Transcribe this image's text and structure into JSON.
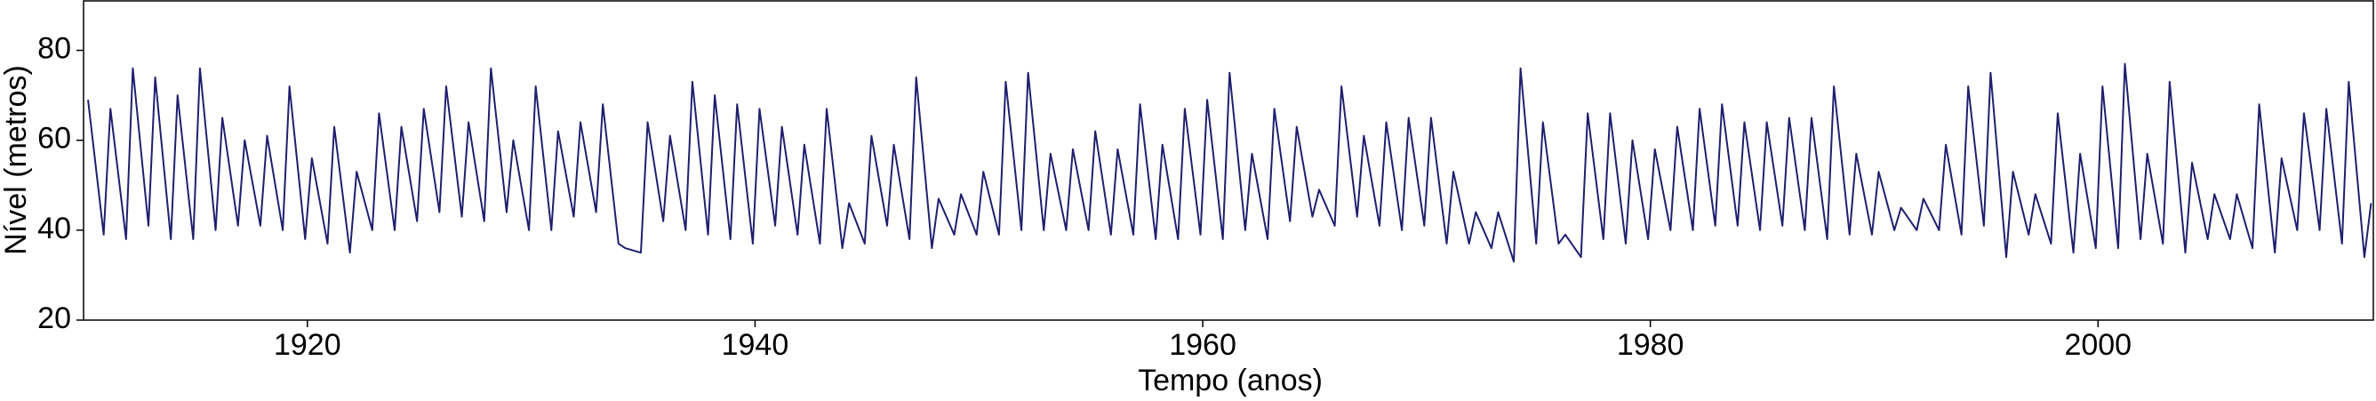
{
  "chart_data": {
    "type": "line",
    "x_label": "Tempo (anos)",
    "y_label": "Nível (metros)",
    "color": "#1f1f6e",
    "grid": false,
    "xlim": [
      1910,
      2012.3
    ],
    "ylim": [
      20,
      91
    ],
    "xticks": [
      1920,
      1940,
      1960,
      1980,
      2000
    ],
    "yticks": [
      20,
      40,
      60,
      80
    ],
    "x": [
      1910.2,
      1910.9,
      1911.2,
      1911.9,
      1912.2,
      1912.9,
      1913.2,
      1913.9,
      1914.2,
      1914.9,
      1915.2,
      1915.9,
      1916.2,
      1916.9,
      1917.2,
      1917.9,
      1918.2,
      1918.9,
      1919.2,
      1919.9,
      1920.2,
      1920.9,
      1921.2,
      1921.9,
      1922.2,
      1922.9,
      1923.2,
      1923.9,
      1924.2,
      1924.9,
      1925.2,
      1925.9,
      1926.2,
      1926.9,
      1927.2,
      1927.9,
      1928.2,
      1928.9,
      1929.2,
      1929.9,
      1930.2,
      1930.9,
      1931.2,
      1931.9,
      1932.2,
      1932.9,
      1933.2,
      1933.9,
      1934.2,
      1934.9,
      1935.2,
      1935.9,
      1936.2,
      1936.9,
      1937.2,
      1937.9,
      1938.2,
      1938.9,
      1939.2,
      1939.9,
      1940.2,
      1940.9,
      1941.2,
      1941.9,
      1942.2,
      1942.9,
      1943.2,
      1943.9,
      1944.2,
      1944.9,
      1945.2,
      1945.9,
      1946.2,
      1946.9,
      1947.2,
      1947.9,
      1948.2,
      1948.9,
      1949.2,
      1949.9,
      1950.2,
      1950.9,
      1951.2,
      1951.9,
      1952.2,
      1952.9,
      1953.2,
      1953.9,
      1954.2,
      1954.9,
      1955.2,
      1955.9,
      1956.2,
      1956.9,
      1957.2,
      1957.9,
      1958.2,
      1958.9,
      1959.2,
      1959.9,
      1960.2,
      1960.9,
      1961.2,
      1961.9,
      1962.2,
      1962.9,
      1963.2,
      1963.9,
      1964.2,
      1964.9,
      1965.2,
      1965.9,
      1966.2,
      1966.9,
      1967.2,
      1967.9,
      1968.2,
      1968.9,
      1969.2,
      1969.9,
      1970.2,
      1970.9,
      1971.2,
      1971.9,
      1972.2,
      1972.9,
      1973.2,
      1973.9,
      1974.2,
      1974.9,
      1975.2,
      1975.9,
      1976.2,
      1976.9,
      1977.2,
      1977.9,
      1978.2,
      1978.9,
      1979.2,
      1979.9,
      1980.2,
      1980.9,
      1981.2,
      1981.9,
      1982.2,
      1982.9,
      1983.2,
      1983.9,
      1984.2,
      1984.9,
      1985.2,
      1985.9,
      1986.2,
      1986.9,
      1987.2,
      1987.9,
      1988.2,
      1988.9,
      1989.2,
      1989.9,
      1990.2,
      1990.9,
      1991.2,
      1991.9,
      1992.2,
      1992.9,
      1993.2,
      1993.9,
      1994.2,
      1994.9,
      1995.2,
      1995.9,
      1996.2,
      1996.9,
      1997.2,
      1997.9,
      1998.2,
      1998.9,
      1999.2,
      1999.9,
      2000.2,
      2000.9,
      2001.2,
      2001.9,
      2002.2,
      2002.9,
      2003.2,
      2003.9,
      2004.2,
      2004.9,
      2005.2,
      2005.9,
      2006.2,
      2006.9,
      2007.2,
      2007.9,
      2008.2,
      2008.9,
      2009.2,
      2009.9,
      2010.2,
      2010.9,
      2011.2,
      2011.9,
      2012.2
    ],
    "values": [
      69,
      39,
      67,
      38,
      76,
      41,
      74,
      38,
      70,
      38,
      76,
      40,
      65,
      41,
      60,
      41,
      61,
      40,
      72,
      38,
      56,
      37,
      63,
      35,
      53,
      40,
      66,
      40,
      63,
      42,
      67,
      44,
      72,
      43,
      64,
      42,
      76,
      44,
      60,
      40,
      72,
      40,
      62,
      43,
      64,
      44,
      68,
      37,
      36,
      35,
      64,
      42,
      61,
      40,
      73,
      39,
      70,
      38,
      68,
      37,
      67,
      41,
      63,
      39,
      59,
      37,
      67,
      36,
      46,
      37,
      61,
      41,
      59,
      38,
      74,
      36,
      47,
      39,
      48,
      39,
      53,
      39,
      73,
      40,
      75,
      40,
      57,
      40,
      58,
      40,
      62,
      39,
      58,
      39,
      68,
      38,
      59,
      38,
      67,
      39,
      69,
      38,
      75,
      40,
      57,
      38,
      67,
      42,
      63,
      43,
      49,
      41,
      72,
      43,
      61,
      41,
      64,
      40,
      65,
      41,
      65,
      37,
      53,
      37,
      44,
      36,
      44,
      33,
      76,
      37,
      64,
      37,
      39,
      34,
      66,
      38,
      66,
      37,
      60,
      38,
      58,
      40,
      63,
      40,
      67,
      41,
      68,
      41,
      64,
      40,
      64,
      41,
      65,
      40,
      65,
      38,
      72,
      39,
      57,
      39,
      53,
      40,
      45,
      40,
      47,
      40,
      59,
      39,
      72,
      41,
      75,
      34,
      53,
      39,
      48,
      37,
      66,
      35,
      57,
      36,
      72,
      36,
      77,
      38,
      57,
      37,
      73,
      35,
      55,
      38,
      48,
      38,
      48,
      36,
      68,
      35,
      56,
      40,
      66,
      40,
      67,
      37,
      73,
      34,
      46
    ]
  }
}
